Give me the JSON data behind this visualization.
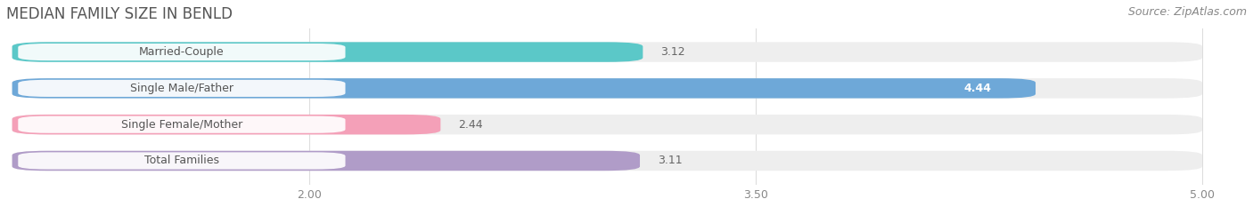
{
  "title": "MEDIAN FAMILY SIZE IN BENLD",
  "source": "Source: ZipAtlas.com",
  "categories": [
    "Married-Couple",
    "Single Male/Father",
    "Single Female/Mother",
    "Total Families"
  ],
  "values": [
    3.12,
    4.44,
    2.44,
    3.11
  ],
  "bar_colors": [
    "#5bc8c8",
    "#6ea8d8",
    "#f4a0b8",
    "#b09cc8"
  ],
  "bar_bg_colors": [
    "#eeeeee",
    "#eeeeee",
    "#eeeeee",
    "#eeeeee"
  ],
  "value_in_bar": [
    false,
    true,
    false,
    false
  ],
  "xmin": 1.0,
  "xmax": 5.0,
  "xaxis_min": 2.0,
  "xaxis_max": 5.0,
  "xticks": [
    2.0,
    3.5,
    5.0
  ],
  "xtick_labels": [
    "2.00",
    "3.50",
    "5.00"
  ],
  "bar_height": 0.55,
  "figsize": [
    14.06,
    2.33
  ],
  "dpi": 100,
  "title_fontsize": 12,
  "label_fontsize": 9,
  "value_fontsize": 9,
  "tick_fontsize": 9,
  "source_fontsize": 9,
  "background_color": "#ffffff",
  "label_pill_color": "#ffffff",
  "label_text_color": "#555555"
}
